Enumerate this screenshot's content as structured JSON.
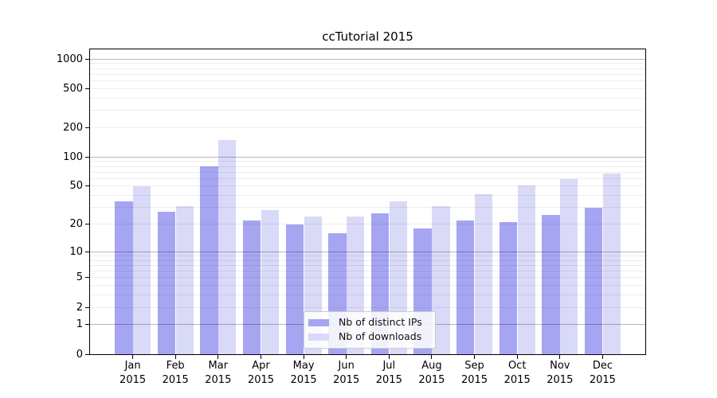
{
  "title": "ccTutorial 2015",
  "legend": {
    "items": [
      {
        "label": "Nb of distinct IPs"
      },
      {
        "label": "Nb of downloads"
      }
    ]
  },
  "colors": {
    "series_ips": "#a5a5f2",
    "series_downloads": "#d9d9f8",
    "axis": "#000000",
    "legend_border": "#cccccc"
  },
  "chart_data": {
    "type": "bar",
    "title": "ccTutorial 2015",
    "categories": [
      "Jan 2015",
      "Feb 2015",
      "Mar 2015",
      "Apr 2015",
      "May 2015",
      "Jun 2015",
      "Jul 2015",
      "Aug 2015",
      "Sep 2015",
      "Oct 2015",
      "Nov 2015",
      "Dec 2015"
    ],
    "x_tick_line1": [
      "Jan",
      "Feb",
      "Mar",
      "Apr",
      "May",
      "Jun",
      "Jul",
      "Aug",
      "Sep",
      "Oct",
      "Nov",
      "Dec"
    ],
    "x_tick_line2": "2015",
    "series": [
      {
        "name": "Nb of distinct IPs",
        "color": "#a5a5f2",
        "values": [
          35,
          27,
          80,
          22,
          20,
          16,
          26,
          18,
          22,
          21,
          25,
          30
        ]
      },
      {
        "name": "Nb of downloads",
        "color": "#d9d9f8",
        "values": [
          50,
          31,
          150,
          28,
          24,
          24,
          35,
          31,
          41,
          51,
          59,
          67
        ]
      }
    ],
    "yscale": "symlog (position proportional to log(1+value))",
    "ytick_labels": [
      0,
      1,
      2,
      5,
      10,
      20,
      50,
      100,
      200,
      500,
      1000
    ],
    "major_gridlines": [
      1,
      10,
      100,
      1000
    ],
    "minor_gridlines": [
      2,
      3,
      4,
      5,
      6,
      7,
      8,
      9,
      20,
      30,
      40,
      50,
      60,
      70,
      80,
      90,
      200,
      300,
      400,
      500,
      600,
      700,
      800,
      900
    ],
    "ylim": [
      0,
      1250
    ],
    "grid": "on",
    "legend_position": "lower center"
  }
}
